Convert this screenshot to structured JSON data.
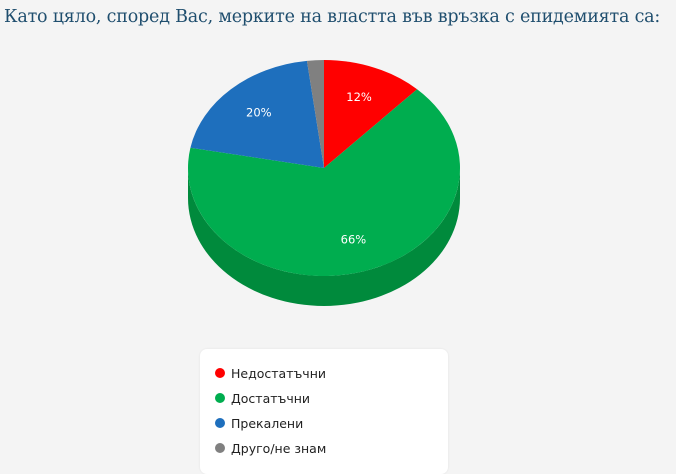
{
  "title": "Като цяло, според Вас, мерките на властта във връзка с епидемията са:",
  "chart_data": {
    "type": "pie",
    "title": "Като цяло, според Вас, мерките на властта във връзка с епидемията са:",
    "style": "3d",
    "start_angle_deg": 0,
    "direction": "clockwise",
    "legend_position": "bottom",
    "slices": [
      {
        "label": "Недостатъчни",
        "value": 12,
        "data_label": "12%",
        "color": "#ff0000",
        "side_color": "#c00000"
      },
      {
        "label": "Достатъчни",
        "value": 66,
        "data_label": "66%",
        "color": "#00ad4f",
        "side_color": "#008a3c"
      },
      {
        "label": "Прекалени",
        "value": 20,
        "data_label": "20%",
        "color": "#1e6fbd",
        "side_color": "#165590"
      },
      {
        "label": "Друго/не знам",
        "value": 2,
        "data_label": "",
        "color": "#808080",
        "side_color": "#5e5e5e"
      }
    ]
  }
}
